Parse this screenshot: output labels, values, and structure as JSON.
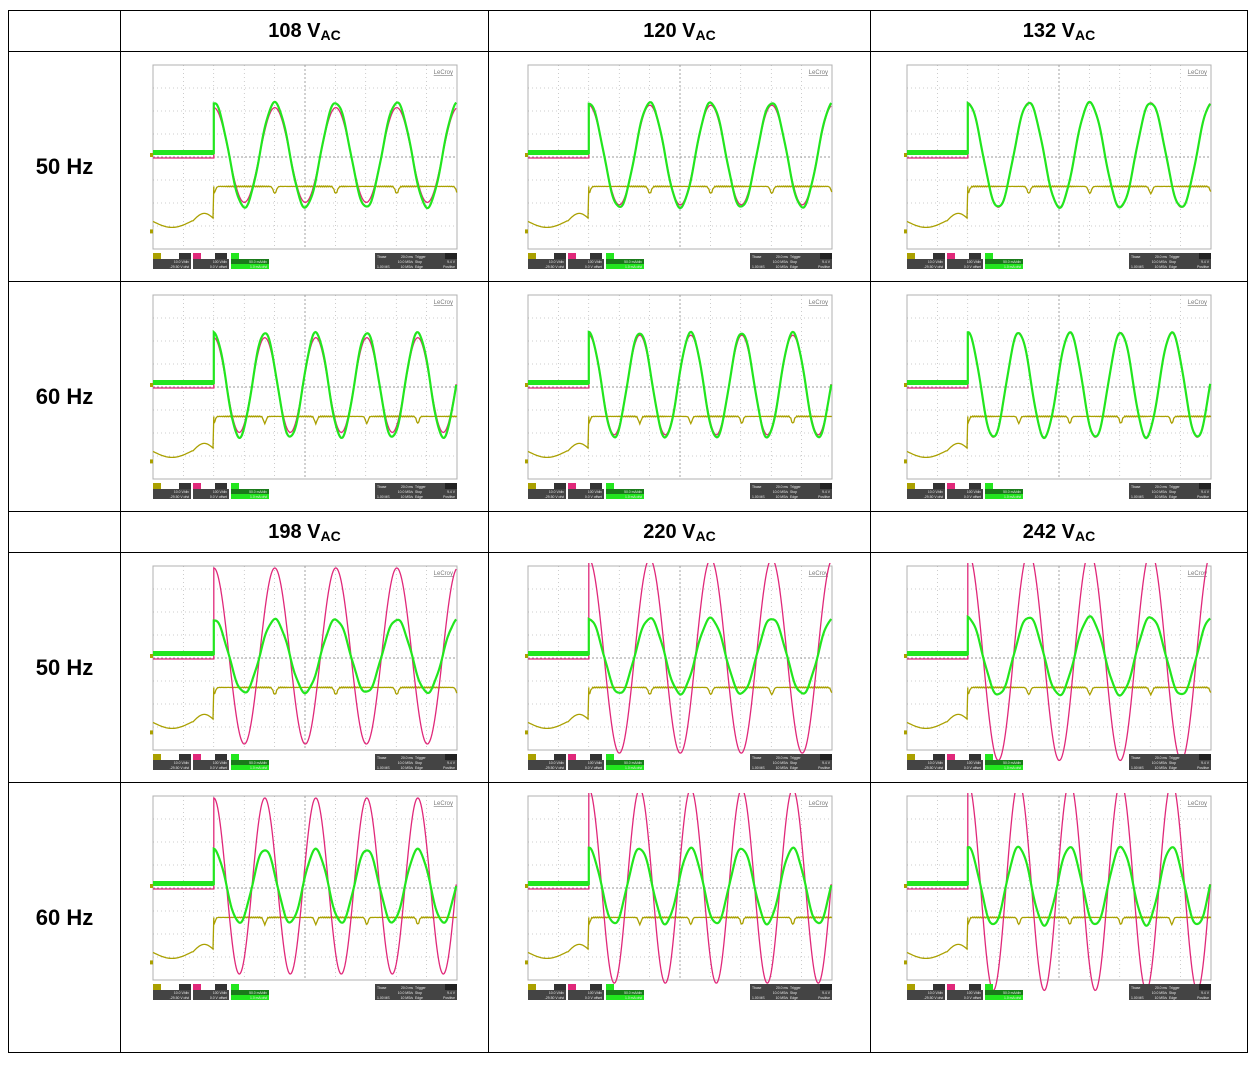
{
  "colors": {
    "ch1": "#aaa000",
    "ch2": "#e0287a",
    "ch4": "#22e61e",
    "grid": "#9a9a9a"
  },
  "scope_common": {
    "brand": "LeCroy",
    "info_left": [
      [
        "C1",
        "DC1M",
        "C2",
        "DC1M",
        "C4",
        "DC"
      ],
      [
        "10.0 V/div",
        "100 V/div",
        "50.0 mA/div"
      ],
      [
        "-29.50 V ofst",
        "0.0 V offset",
        "1.0 mA ofst"
      ]
    ],
    "info_right": [
      [
        "Tbase",
        "20.0 ms",
        "Trigger",
        "C1 DC"
      ],
      [
        "10.0 MS/s",
        "Stop",
        "9.4 V"
      ],
      [
        "1.00 MS",
        "10 MS/s",
        "Edge",
        "Positive"
      ]
    ]
  },
  "sections": [
    {
      "voltages": [
        {
          "value": "108 V",
          "sub": "AC"
        },
        {
          "value": "120 V",
          "sub": "AC"
        },
        {
          "value": "132 V",
          "sub": "AC"
        }
      ],
      "rows": [
        {
          "freq": "50 Hz",
          "hz": 50
        },
        {
          "freq": "60 Hz",
          "hz": 60
        }
      ],
      "amp_red": [
        0.78,
        0.82,
        0.86
      ],
      "amp_green": [
        0.86,
        0.86,
        0.86
      ]
    },
    {
      "voltages": [
        {
          "value": "198 V",
          "sub": "AC"
        },
        {
          "value": "220 V",
          "sub": "AC"
        },
        {
          "value": "242 V",
          "sub": "AC"
        }
      ],
      "rows": [
        {
          "freq": "50 Hz",
          "hz": 50
        },
        {
          "freq": "60 Hz",
          "hz": 60
        }
      ],
      "amp_red": [
        1.45,
        1.6,
        1.72
      ],
      "amp_green": [
        0.6,
        0.62,
        0.64
      ]
    }
  ]
}
